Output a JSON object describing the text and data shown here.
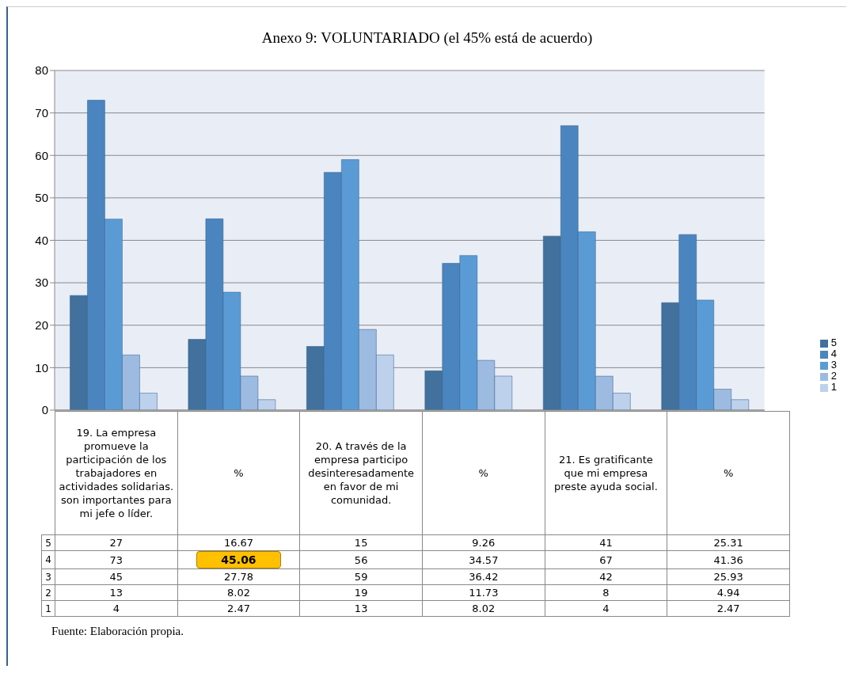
{
  "chart_data": {
    "type": "bar",
    "title": "Anexo 9: VOLUNTARIADO (el 45% está de acuerdo)",
    "categories": [
      "19. La empresa promueve la participación de los trabajadores en actividades solidarias. son importantes para mi jefe o líder.",
      "%",
      "20. A través de la empresa participo desinteresadamente en favor de mi comunidad.",
      "%",
      "21. Es gratificante que mi empresa preste ayuda social.",
      "%"
    ],
    "series": [
      {
        "name": "5",
        "color": "#41719c",
        "values": [
          27,
          16.67,
          15,
          9.26,
          41,
          25.31
        ]
      },
      {
        "name": "4",
        "color": "#4a85bf",
        "values": [
          73,
          45.06,
          56,
          34.57,
          67,
          41.36
        ]
      },
      {
        "name": "3",
        "color": "#5b9bd5",
        "values": [
          45,
          27.78,
          59,
          36.42,
          42,
          25.93
        ]
      },
      {
        "name": "2",
        "color": "#9dbbe1",
        "values": [
          13,
          8.02,
          19,
          11.73,
          8,
          4.94
        ]
      },
      {
        "name": "1",
        "color": "#bdd1ed",
        "values": [
          4,
          2.47,
          13,
          8.02,
          4,
          2.47
        ]
      }
    ],
    "ylim": [
      0,
      80
    ],
    "yticks": [
      0,
      10,
      20,
      30,
      40,
      50,
      60,
      70,
      80
    ],
    "grid": "y",
    "legend": "right",
    "data_labels": true,
    "annotations": [
      "Fuente: Elaboración propia."
    ]
  }
}
